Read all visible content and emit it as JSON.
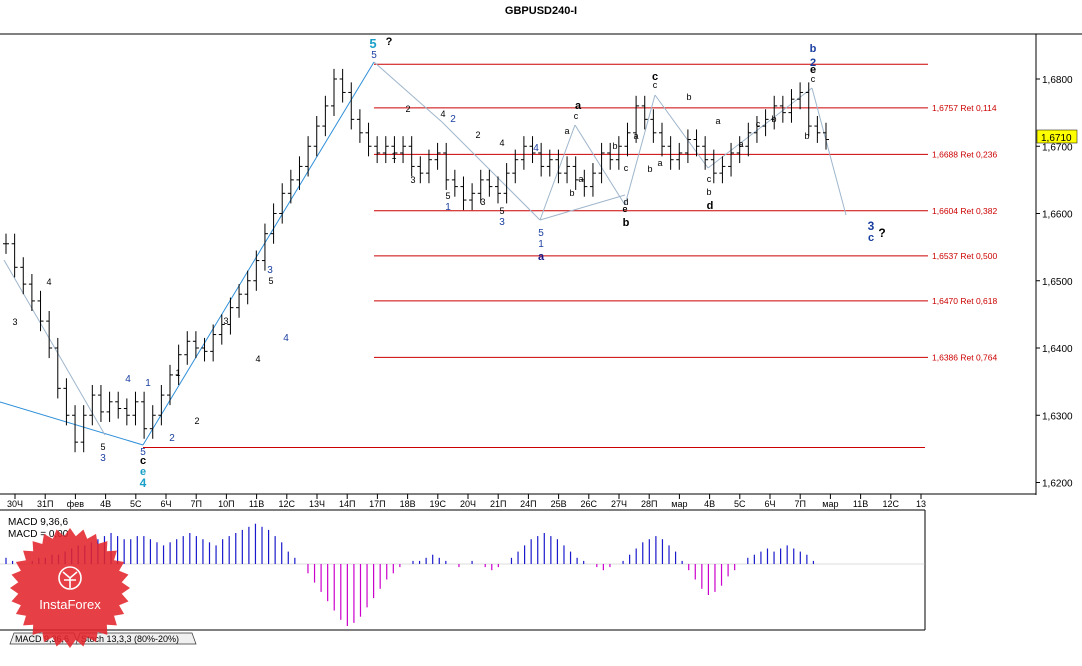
{
  "chart_data": {
    "type": "candlestick",
    "title": "GBPUSD240-I",
    "price_axis": {
      "ticks": [
        "1,6800",
        "1,6700",
        "1,6600",
        "1,6500",
        "1,6400",
        "1,6300",
        "1,6200"
      ],
      "tick_values": [
        1.68,
        1.67,
        1.66,
        1.65,
        1.64,
        1.63,
        1.62
      ],
      "ylim": [
        1.618,
        1.6865
      ]
    },
    "current_price": "1,6710",
    "date_axis": {
      "labels": [
        "30Ч",
        "31П",
        "фев",
        "4В",
        "5С",
        "6Ч",
        "7П",
        "10П",
        "11В",
        "12С",
        "13Ч",
        "14П",
        "17П",
        "18В",
        "19С",
        "20Ч",
        "21П",
        "24П",
        "25В",
        "26С",
        "27Ч",
        "28П",
        "мар",
        "4В",
        "5С",
        "6Ч",
        "7П",
        "мар",
        "11В",
        "12С",
        "13"
      ]
    },
    "ohlc_closes_approx": [
      1.6555,
      1.652,
      1.6495,
      1.647,
      1.644,
      1.64,
      1.634,
      1.63,
      1.626,
      1.63,
      1.633,
      1.6305,
      1.632,
      1.631,
      1.63,
      1.632,
      1.628,
      1.63,
      1.633,
      1.636,
      1.639,
      1.641,
      1.64,
      1.6395,
      1.642,
      1.6435,
      1.646,
      1.648,
      1.65,
      1.653,
      1.657,
      1.66,
      1.663,
      1.665,
      1.667,
      1.67,
      1.673,
      1.676,
      1.68,
      1.678,
      1.674,
      1.672,
      1.67,
      1.669,
      1.67,
      1.669,
      1.67,
      1.667,
      1.666,
      1.668,
      1.669,
      1.665,
      1.664,
      1.662,
      1.663,
      1.665,
      1.664,
      1.663,
      1.666,
      1.668,
      1.67,
      1.669,
      1.667,
      1.668,
      1.666,
      1.667,
      1.665,
      1.664,
      1.666,
      1.669,
      1.668,
      1.67,
      1.672,
      1.676,
      1.674,
      1.672,
      1.67,
      1.668,
      1.669,
      1.671,
      1.67,
      1.668,
      1.666,
      1.667,
      1.669,
      1.67,
      1.672,
      1.673,
      1.674,
      1.676,
      1.675,
      1.677,
      1.678,
      1.673,
      1.672,
      1.671
    ],
    "fibonacci_levels": [
      {
        "label": "1,6757 Ret 0,114",
        "value": 1.6757
      },
      {
        "label": "1,6688 Ret 0,236",
        "value": 1.6688
      },
      {
        "label": "1,6604 Ret 0,382",
        "value": 1.6604
      },
      {
        "label": "1,6537 Ret 0,500",
        "value": 1.6537
      },
      {
        "label": "1,6470 Ret 0,618",
        "value": 1.647
      },
      {
        "label": "1,6386 Ret 0,764",
        "value": 1.6386
      }
    ],
    "extra_levels": [
      1.6822,
      1.6252
    ],
    "wave_labels": [
      {
        "text": "3",
        "color": "#000000"
      },
      {
        "text": "4",
        "color": "#000000"
      },
      {
        "text": "5",
        "color": "#000000"
      },
      {
        "text": "3",
        "color": "#1a3fa0"
      },
      {
        "text": "4",
        "color": "#1a3fa0"
      },
      {
        "text": "1",
        "color": "#1a3fa0"
      },
      {
        "text": "5",
        "color": "#1a3fa0"
      },
      {
        "text": "c",
        "color": "#000000"
      },
      {
        "text": "e",
        "color": "#1aa0c8"
      },
      {
        "text": "4",
        "color": "#1aa0c8"
      },
      {
        "text": "2",
        "color": "#1a3fa0"
      },
      {
        "text": "1",
        "color": "#000000"
      },
      {
        "text": "2",
        "color": "#000000"
      },
      {
        "text": "3",
        "color": "#000000"
      },
      {
        "text": "4",
        "color": "#000000"
      },
      {
        "text": "3",
        "color": "#1a3fa0"
      },
      {
        "text": "5",
        "color": "#000000"
      },
      {
        "text": "4",
        "color": "#1a3fa0"
      },
      {
        "text": "5",
        "color": "#1aa0c8"
      },
      {
        "text": "5",
        "color": "#1a3fa0"
      },
      {
        "text": "?",
        "color": "#000000"
      },
      {
        "text": "1",
        "color": "#000000"
      },
      {
        "text": "2",
        "color": "#000000"
      },
      {
        "text": "3",
        "color": "#000000"
      },
      {
        "text": "4",
        "color": "#000000"
      },
      {
        "text": "2",
        "color": "#1a3fa0"
      },
      {
        "text": "5",
        "color": "#000000"
      },
      {
        "text": "1",
        "color": "#1a3fa0"
      },
      {
        "text": "2",
        "color": "#000000"
      },
      {
        "text": "3",
        "color": "#000000"
      },
      {
        "text": "4",
        "color": "#000000"
      },
      {
        "text": "5",
        "color": "#000000"
      },
      {
        "text": "3",
        "color": "#1a3fa0"
      },
      {
        "text": "4",
        "color": "#1a3fa0"
      },
      {
        "text": "5",
        "color": "#1a3fa0"
      },
      {
        "text": "1",
        "color": "#1a3fa0"
      },
      {
        "text": "a",
        "color": "#1a1a8c"
      },
      {
        "text": "a",
        "color": "#000000"
      },
      {
        "text": "a",
        "color": "#000000"
      },
      {
        "text": "c",
        "color": "#000000"
      },
      {
        "text": "b",
        "color": "#000000"
      },
      {
        "text": "a",
        "color": "#000000"
      },
      {
        "text": "b",
        "color": "#000000"
      },
      {
        "text": "c",
        "color": "#000000"
      },
      {
        "text": "d",
        "color": "#000000"
      },
      {
        "text": "e",
        "color": "#000000"
      },
      {
        "text": "b",
        "color": "#000000"
      },
      {
        "text": "a",
        "color": "#000000"
      },
      {
        "text": "c",
        "color": "#000000"
      },
      {
        "text": "c",
        "color": "#000000"
      },
      {
        "text": "b",
        "color": "#000000"
      },
      {
        "text": "a",
        "color": "#000000"
      },
      {
        "text": "b",
        "color": "#000000"
      },
      {
        "text": "d",
        "color": "#000000"
      },
      {
        "text": "a",
        "color": "#000000"
      },
      {
        "text": "b",
        "color": "#000000"
      },
      {
        "text": "c",
        "color": "#000000"
      },
      {
        "text": "b",
        "color": "#1a3fa0"
      },
      {
        "text": "2",
        "color": "#1a3fa0"
      },
      {
        "text": "e",
        "color": "#000000"
      },
      {
        "text": "c",
        "color": "#000000"
      },
      {
        "text": "b",
        "color": "#000000"
      },
      {
        "text": "a",
        "color": "#000000"
      },
      {
        "text": "c",
        "color": "#000000"
      },
      {
        "text": "b",
        "color": "#000000"
      },
      {
        "text": "e",
        "color": "#000000"
      },
      {
        "text": "3",
        "color": "#1a3fa0"
      },
      {
        "text": "c",
        "color": "#1a3fa0"
      },
      {
        "text": "?",
        "color": "#000000"
      }
    ],
    "macd": {
      "label_1": "MACD 9,36,6",
      "label_2": "MACD = 0,00",
      "positive_color": "#1a1acc",
      "negative_color": "#cc00cc",
      "values": [
        2,
        1,
        0,
        0,
        1,
        2,
        2,
        3,
        3,
        4,
        5,
        6,
        6,
        7,
        8,
        9,
        10,
        9,
        8,
        8,
        9,
        9,
        8,
        7,
        6,
        7,
        8,
        9,
        10,
        9,
        8,
        7,
        6,
        8,
        9,
        10,
        11,
        12,
        13,
        12,
        11,
        9,
        7,
        4,
        2,
        0,
        -3,
        -6,
        -9,
        -12,
        -15,
        -18,
        -20,
        -19,
        -17,
        -14,
        -11,
        -8,
        -5,
        -3,
        -1,
        0,
        1,
        1,
        2,
        3,
        2,
        1,
        0,
        -1,
        0,
        1,
        0,
        -1,
        -2,
        -1,
        0,
        2,
        4,
        6,
        8,
        9,
        10,
        9,
        8,
        6,
        4,
        2,
        1,
        0,
        -1,
        -2,
        -1,
        0,
        1,
        3,
        5,
        7,
        8,
        9,
        8,
        6,
        4,
        1,
        -2,
        -5,
        -8,
        -10,
        -9,
        -7,
        -4,
        -2,
        0,
        2,
        3,
        4,
        5,
        4,
        5,
        6,
        5,
        4,
        3,
        1,
        0
      ]
    },
    "indicator_tabs": [
      "MACD 9,36,6",
      "Stoch 13,3,3 (80%-20%)"
    ],
    "question_marks": [
      "?",
      "?"
    ],
    "grid": false,
    "legend": "none"
  },
  "watermark": {
    "brand": "InstaForex",
    "color": "#e3242b"
  },
  "colors": {
    "fib_line": "#cc0000",
    "blue_trend": "#2f8fd8",
    "gray_trend": "#9fb6cc"
  }
}
